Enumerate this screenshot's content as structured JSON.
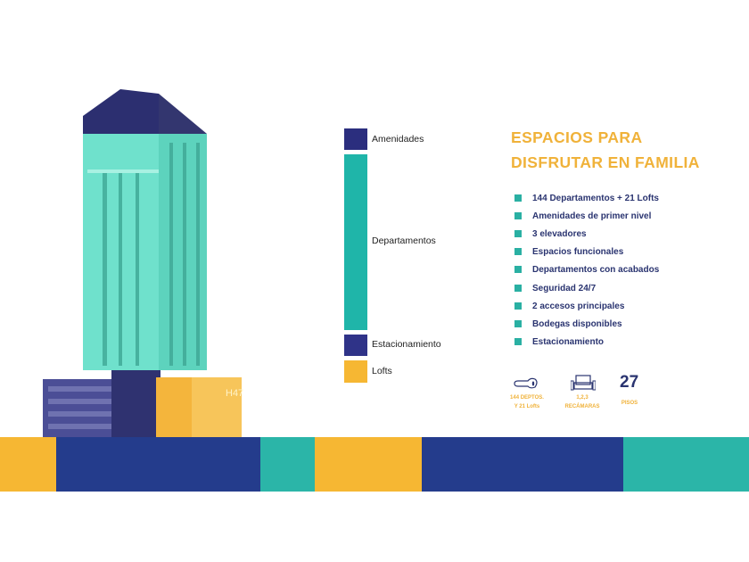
{
  "colors": {
    "navy": "#2b2e7e",
    "teal": "#1fb5a9",
    "yellow": "#f6b733",
    "band_navy": "#243c8c",
    "band_teal": "#2bb5a8"
  },
  "legend": [
    {
      "label": "Amenidades",
      "color": "#2b2e7e"
    },
    {
      "label": "Departamentos",
      "color": "#1fb5a9"
    },
    {
      "label": "Estacionamiento",
      "color": "#2f3388"
    },
    {
      "label": "Lofts",
      "color": "#f6b733"
    }
  ],
  "heading": {
    "line1": "ESPACIOS PARA",
    "line2": "DISFRUTAR EN FAMILIA"
  },
  "features": [
    "144 Departamentos + 21 Lofts",
    "Amenidades de primer nivel",
    "3 elevadores",
    "Espacios funcionales",
    "Departamentos con acabados",
    "Seguridad 24/7",
    "2 accesos principales",
    "Bodegas disponibles",
    "Estacionamiento"
  ],
  "stats": [
    {
      "icon": "key-icon",
      "line1": "144 DEPTOS.",
      "line2": "Y 21 Lofts"
    },
    {
      "icon": "bedroom-icon",
      "line1": "1,2,3",
      "line2": "RECÁMARAS"
    },
    {
      "value": "27",
      "line1": "PISOS"
    }
  ],
  "building_sign": "H47"
}
